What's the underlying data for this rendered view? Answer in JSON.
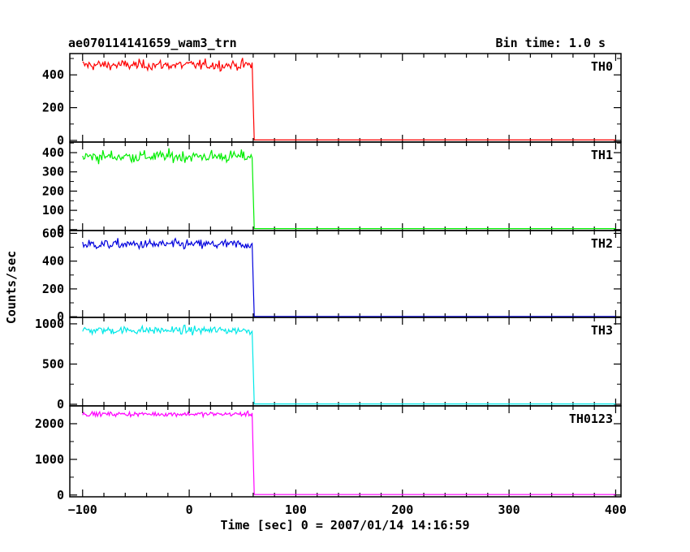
{
  "chart_data": {
    "type": "line",
    "title": "ae070114141659_wam3_trn",
    "subtitle": "Bin time: 1.0 s",
    "xlabel": "Time [sec] 0 = 2007/01/14 14:16:59",
    "ylabel": "Counts/sec",
    "xlim": [
      -112,
      405
    ],
    "x_ticks": [
      -100,
      0,
      100,
      200,
      300,
      400
    ],
    "drop_time": 60,
    "panels": [
      {
        "name": "TH0",
        "color": "#ff0000",
        "ylim": [
          -10,
          530
        ],
        "y_ticks": [
          0,
          200,
          400
        ],
        "pre_level": 460,
        "noise": 22,
        "post_level": 3
      },
      {
        "name": "TH1",
        "color": "#00ee00",
        "ylim": [
          -5,
          455
        ],
        "y_ticks": [
          0,
          100,
          200,
          300,
          400
        ],
        "pre_level": 380,
        "noise": 22,
        "post_level": 5
      },
      {
        "name": "TH2",
        "color": "#0000dd",
        "ylim": [
          -5,
          620
        ],
        "y_ticks": [
          0,
          200,
          400,
          600
        ],
        "pre_level": 520,
        "noise": 25,
        "post_level": 2
      },
      {
        "name": "TH3",
        "color": "#00e8e8",
        "ylim": [
          -20,
          1080
        ],
        "y_ticks": [
          0,
          500,
          1000
        ],
        "pre_level": 920,
        "noise": 35,
        "post_level": 4
      },
      {
        "name": "TH0123",
        "color": "#ff00ff",
        "ylim": [
          -50,
          2500
        ],
        "y_ticks": [
          0,
          1000,
          2000
        ],
        "pre_level": 2270,
        "noise": 45,
        "post_level": 14
      }
    ]
  }
}
